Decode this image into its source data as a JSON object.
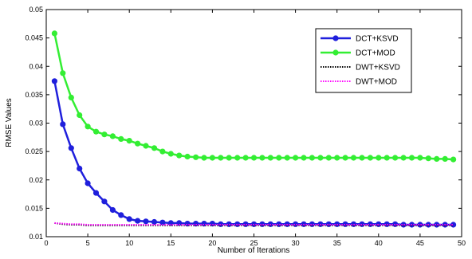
{
  "chart_data": {
    "type": "line",
    "title": "",
    "xlabel": "Number of Iterations",
    "ylabel": "RMSE Values",
    "xlim": [
      0,
      50
    ],
    "ylim": [
      0.01,
      0.05
    ],
    "xticks": [
      0,
      5,
      10,
      15,
      20,
      25,
      30,
      35,
      40,
      45,
      50
    ],
    "xtick_labels": [
      "0",
      "5",
      "10",
      "15",
      "20",
      "25",
      "30",
      "35",
      "40",
      "45",
      "50"
    ],
    "yticks": [
      0.01,
      0.015,
      0.02,
      0.025,
      0.03,
      0.035,
      0.04,
      0.045,
      0.05
    ],
    "ytick_labels": [
      "0.01",
      "0.015",
      "0.02",
      "0.025",
      "0.03",
      "0.035",
      "0.04",
      "0.045",
      "0.05"
    ],
    "grid": false,
    "legend_position": "top-right",
    "x": [
      1,
      2,
      3,
      4,
      5,
      6,
      7,
      8,
      9,
      10,
      11,
      12,
      13,
      14,
      15,
      16,
      17,
      18,
      19,
      20,
      21,
      22,
      23,
      24,
      25,
      26,
      27,
      28,
      29,
      30,
      31,
      32,
      33,
      34,
      35,
      36,
      37,
      38,
      39,
      40,
      41,
      42,
      43,
      44,
      45,
      46,
      47,
      48,
      49
    ],
    "series": [
      {
        "name": "DCT+KSVD",
        "color": "#1f1fdc",
        "style": "solid-markers",
        "values": [
          0.0374,
          0.0298,
          0.0256,
          0.022,
          0.0194,
          0.0177,
          0.0162,
          0.0147,
          0.0138,
          0.0131,
          0.0128,
          0.0127,
          0.0126,
          0.0125,
          0.0124,
          0.0124,
          0.0123,
          0.0123,
          0.0123,
          0.0123,
          0.0122,
          0.0122,
          0.0122,
          0.0122,
          0.0122,
          0.0122,
          0.0122,
          0.0122,
          0.0122,
          0.0122,
          0.0122,
          0.0122,
          0.0122,
          0.0122,
          0.0122,
          0.0122,
          0.0122,
          0.0122,
          0.0122,
          0.0122,
          0.0122,
          0.0122,
          0.0121,
          0.0121,
          0.0121,
          0.0121,
          0.0121,
          0.0121,
          0.0121
        ]
      },
      {
        "name": "DCT+MOD",
        "color": "#33ee33",
        "style": "solid-markers",
        "values": [
          0.0458,
          0.0388,
          0.0345,
          0.0314,
          0.0294,
          0.0285,
          0.028,
          0.0277,
          0.0272,
          0.0269,
          0.0264,
          0.026,
          0.0256,
          0.025,
          0.0246,
          0.0243,
          0.0241,
          0.024,
          0.0239,
          0.0239,
          0.0239,
          0.0239,
          0.0239,
          0.0239,
          0.0239,
          0.0239,
          0.0239,
          0.0239,
          0.0239,
          0.0239,
          0.0239,
          0.0239,
          0.0239,
          0.0239,
          0.0239,
          0.0239,
          0.0239,
          0.0239,
          0.0239,
          0.0239,
          0.0239,
          0.0239,
          0.0239,
          0.0239,
          0.0239,
          0.0238,
          0.0237,
          0.0237,
          0.0236
        ]
      },
      {
        "name": "DWT+KSVD",
        "color": "#000000",
        "style": "dotted",
        "values": [
          0.0124,
          0.0122,
          0.0121,
          0.0121,
          0.012,
          0.012,
          0.012,
          0.012,
          0.012,
          0.012,
          0.012,
          0.012,
          0.012,
          0.012,
          0.012,
          0.012,
          0.012,
          0.012,
          0.012,
          0.012,
          0.012,
          0.012,
          0.012,
          0.012,
          0.012,
          0.012,
          0.012,
          0.012,
          0.012,
          0.012,
          0.012,
          0.012,
          0.012,
          0.012,
          0.012,
          0.012,
          0.012,
          0.012,
          0.012,
          0.012,
          0.012,
          0.012,
          0.012,
          0.012,
          0.012,
          0.012,
          0.012,
          0.012,
          0.012
        ]
      },
      {
        "name": "DWT+MOD",
        "color": "#ff00ff",
        "style": "dotted",
        "values": [
          0.0124,
          0.0123,
          0.0122,
          0.0122,
          0.0121,
          0.0121,
          0.0121,
          0.0121,
          0.0121,
          0.0121,
          0.0121,
          0.0121,
          0.0121,
          0.0121,
          0.0121,
          0.0121,
          0.0121,
          0.0121,
          0.0121,
          0.0121,
          0.0121,
          0.0121,
          0.0121,
          0.0121,
          0.0121,
          0.0121,
          0.0121,
          0.0121,
          0.0121,
          0.0121,
          0.0121,
          0.0121,
          0.0121,
          0.0121,
          0.0121,
          0.0121,
          0.0121,
          0.0121,
          0.0121,
          0.0121,
          0.0121,
          0.0121,
          0.0121,
          0.0121,
          0.0121,
          0.0121,
          0.0121,
          0.0121,
          0.0121
        ]
      }
    ]
  }
}
